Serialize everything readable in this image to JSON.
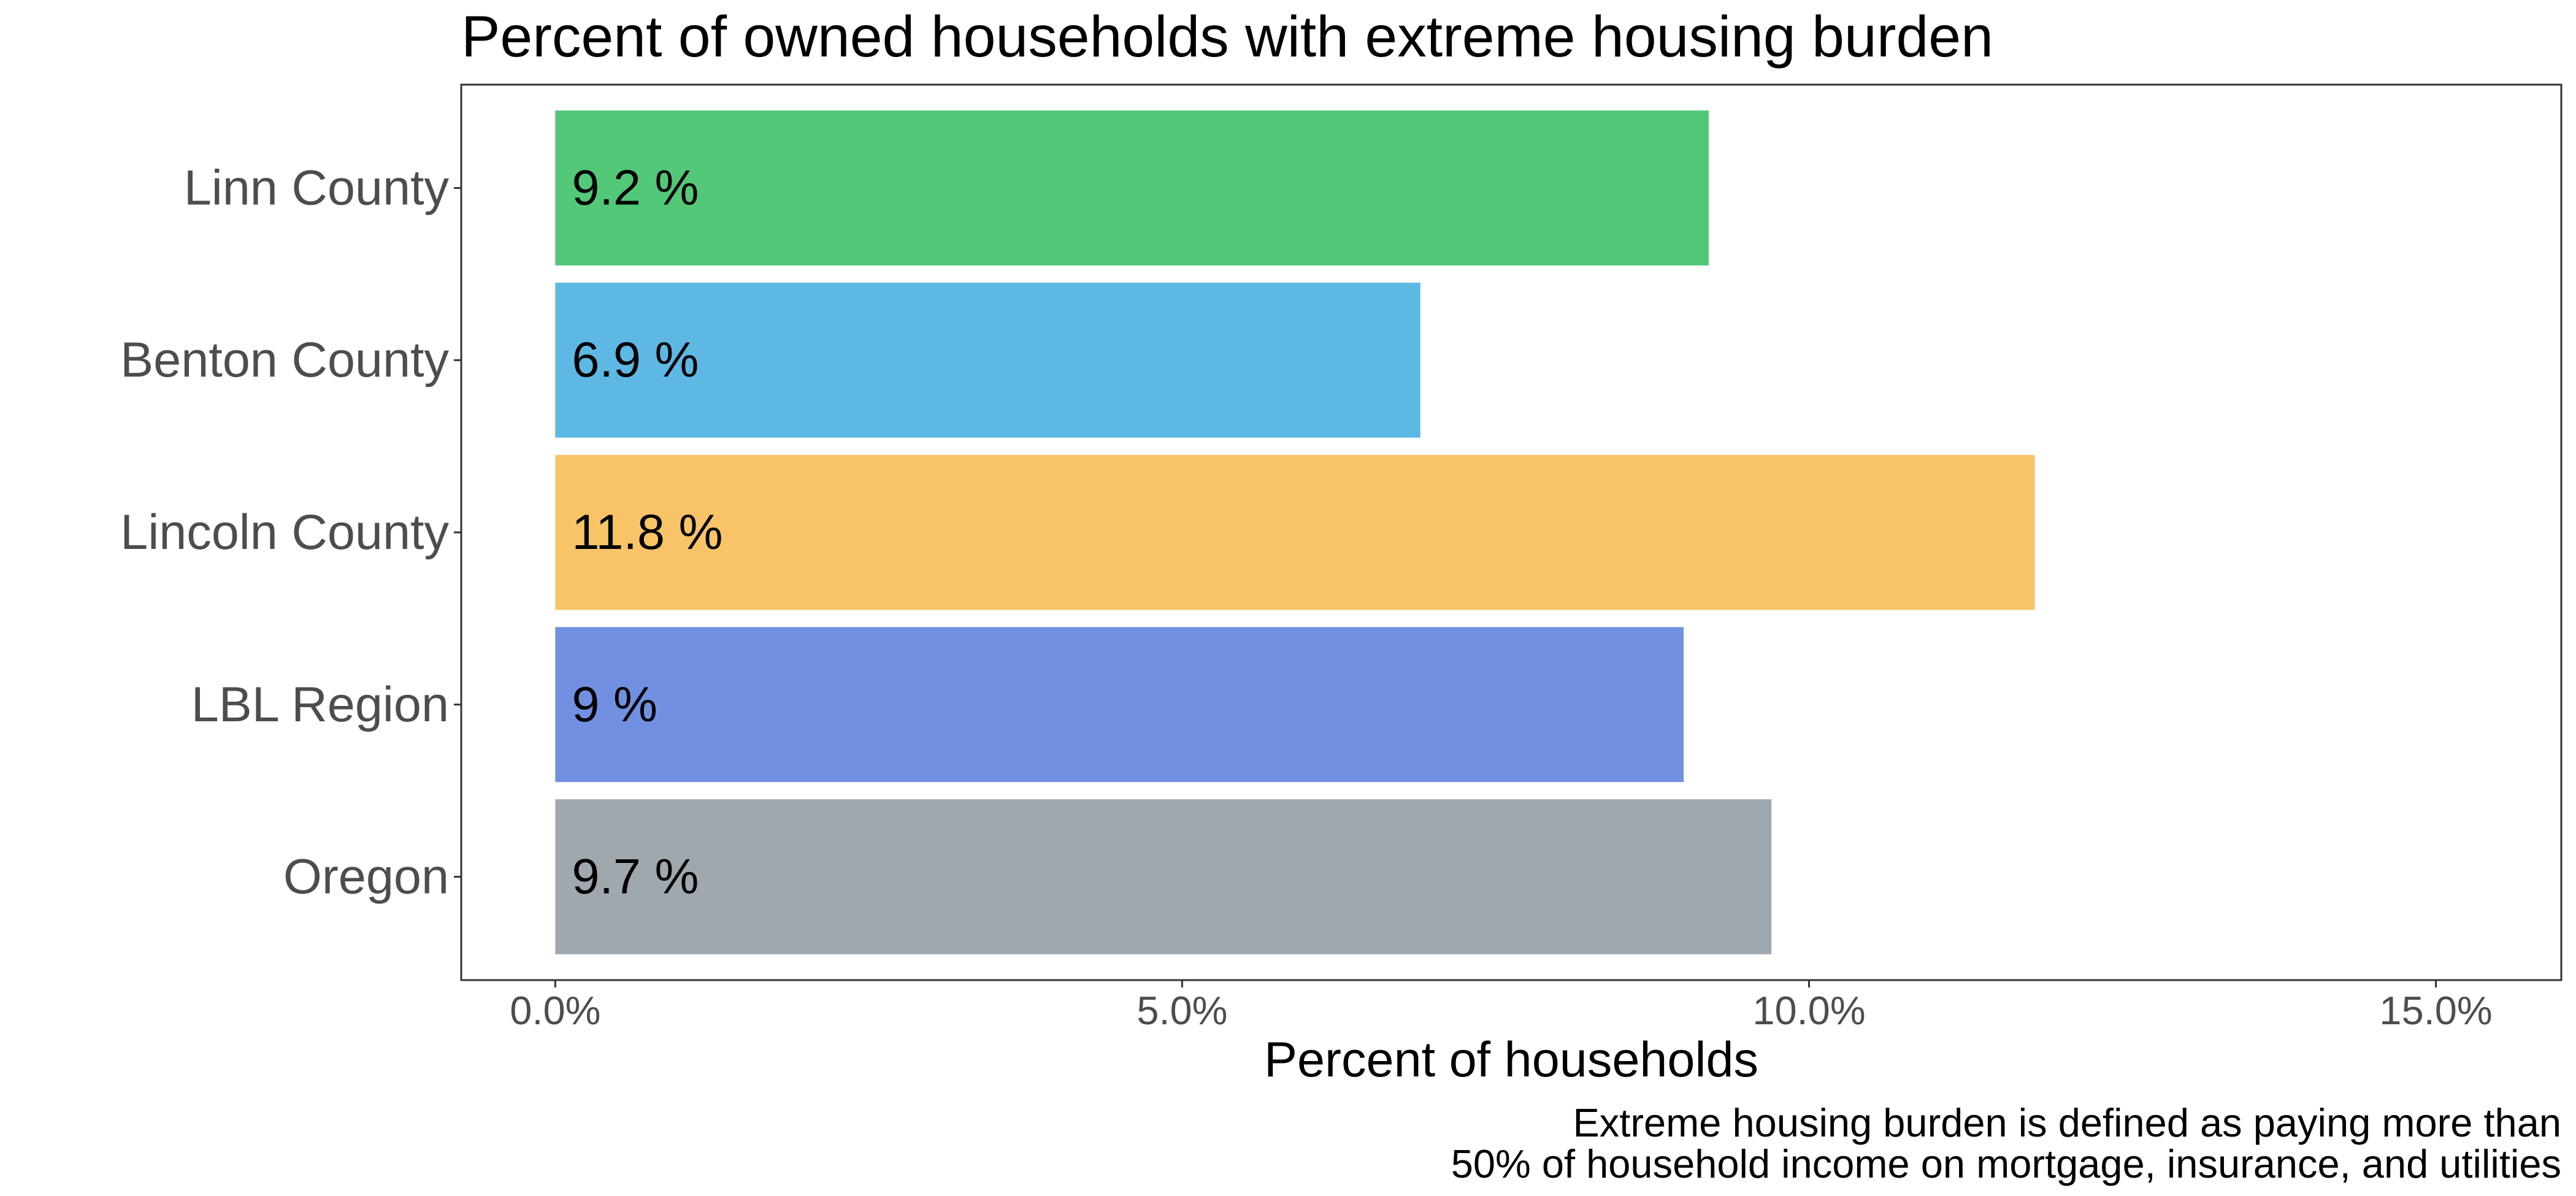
{
  "chart_data": {
    "type": "bar",
    "orientation": "horizontal",
    "title": "Percent of owned households with extreme housing burden",
    "xlabel": "Percent of households",
    "ylabel": "",
    "categories": [
      "Linn County",
      "Benton County",
      "Lincoln County",
      "LBL Region",
      "Oregon"
    ],
    "values": [
      9.2,
      6.9,
      11.8,
      9.0,
      9.7
    ],
    "data_labels": [
      "9.2 %",
      "6.9 %",
      "11.8 %",
      "9 %",
      "9.7 %"
    ],
    "colors": [
      "#52c878",
      "#5db8e4",
      "#f9c468",
      "#7290e1",
      "#a0a8af"
    ],
    "xlim": [
      -0.75,
      16
    ],
    "x_ticks": [
      0,
      5,
      10,
      15
    ],
    "x_tick_labels": [
      "0.0%",
      "5.0%",
      "10.0%",
      "15.0%"
    ],
    "grid": false,
    "legend": "none",
    "caption_lines": [
      "Extreme housing burden is defined as paying more than",
      "50% of household income on mortgage, insurance, and utilities"
    ]
  }
}
